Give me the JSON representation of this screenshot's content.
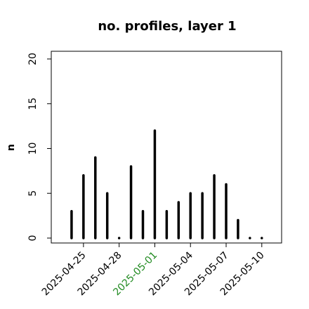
{
  "chart_data": {
    "type": "bar",
    "title": "no. profiles, layer 1",
    "y_label": "n",
    "x": [
      "2025-04-24",
      "2025-04-25",
      "2025-04-26",
      "2025-04-27",
      "2025-04-28",
      "2025-04-29",
      "2025-04-30",
      "2025-05-01",
      "2025-05-02",
      "2025-05-03",
      "2025-05-04",
      "2025-05-05",
      "2025-05-06",
      "2025-05-07",
      "2025-05-08",
      "2025-05-09",
      "2025-05-10"
    ],
    "values": [
      3,
      7,
      9,
      5,
      0,
      8,
      3,
      12,
      3,
      4,
      5,
      5,
      7,
      6,
      2,
      0,
      0
    ],
    "color": "#000000",
    "xlim": [
      "2025-04-22T07:00",
      "2025-05-11T16:00"
    ],
    "xticks": [
      "2025-04-25",
      "2025-04-28",
      "2025-05-01",
      "2025-05-04",
      "2025-05-07",
      "2025-05-10"
    ],
    "highlight_tick": "2025-05-01",
    "highlight_color": "#228b22",
    "ylim": [
      -0.55,
      20.86
    ],
    "yticks": [
      0,
      5,
      10,
      15,
      20
    ]
  }
}
